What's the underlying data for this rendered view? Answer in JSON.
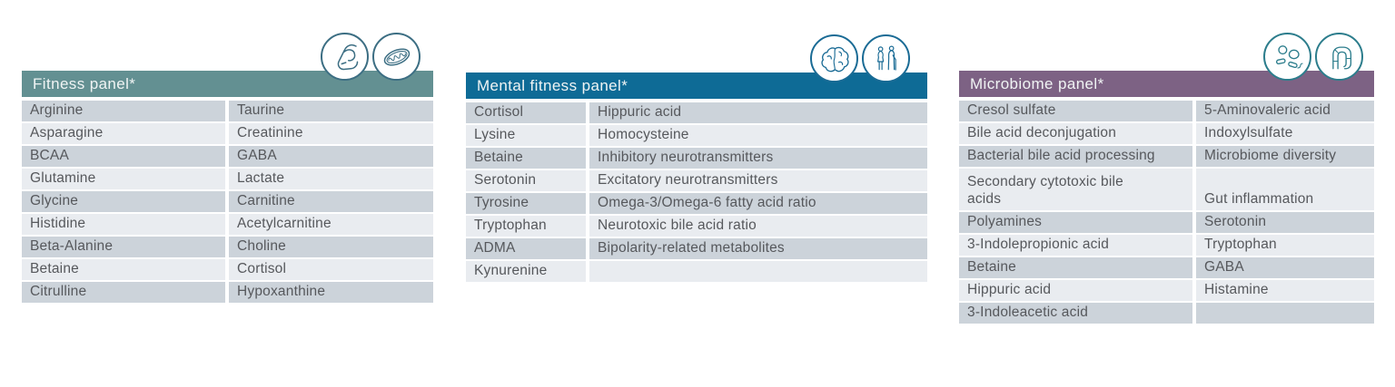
{
  "colors": {
    "row_dark": "#ccd3da",
    "row_light": "#e9ecf0",
    "cell_text": "#56585c",
    "header_text": "#f0f4f4"
  },
  "panels": [
    {
      "title": "Fitness panel*",
      "header_color": "#639092",
      "icon_color": "#3c6e83",
      "icons": [
        "bicep-icon",
        "mitochondria-icon"
      ],
      "rows": [
        [
          "Arginine",
          "Taurine"
        ],
        [
          "Asparagine",
          "Creatinine"
        ],
        [
          "BCAA",
          "GABA"
        ],
        [
          "Glutamine",
          "Lactate"
        ],
        [
          "Glycine",
          "Carnitine"
        ],
        [
          "Histidine",
          "Acetylcarnitine"
        ],
        [
          "Beta-Alanine",
          "Choline"
        ],
        [
          "Betaine",
          "Cortisol"
        ],
        [
          "Citrulline",
          "Hypoxanthine"
        ]
      ]
    },
    {
      "title": "Mental fitness panel*",
      "header_color": "#0e6b96",
      "icon_color": "#1a6b95",
      "icons": [
        "brain-icon",
        "elderly-couple-icon"
      ],
      "rows": [
        [
          "Cortisol",
          "Hippuric acid"
        ],
        [
          "Lysine",
          "Homocysteine"
        ],
        [
          "Betaine",
          "Inhibitory neurotransmitters"
        ],
        [
          "Serotonin",
          "Excitatory neurotransmitters"
        ],
        [
          "Tyrosine",
          "Omega-3/Omega-6 fatty acid ratio"
        ],
        [
          "Tryptophan",
          "Neurotoxic bile acid ratio"
        ],
        [
          "ADMA",
          "Bipolarity-related metabolites"
        ],
        [
          "Kynurenine",
          ""
        ]
      ]
    },
    {
      "title": "Microbiome panel*",
      "header_color": "#7d6284",
      "icon_color": "#2c7d8c",
      "icons": [
        "bacteria-icon",
        "intestine-icon"
      ],
      "rows": [
        [
          "Cresol sulfate",
          "5-Aminovaleric acid"
        ],
        [
          "Bile acid deconjugation",
          "Indoxylsulfate"
        ],
        [
          "Bacterial bile acid processing",
          "Microbiome diversity"
        ],
        [
          "Secondary cytotoxic bile\nacids",
          "Gut inflammation"
        ],
        [
          "Polyamines",
          "Serotonin"
        ],
        [
          "3-Indolepropionic acid",
          "Tryptophan"
        ],
        [
          "Betaine",
          "GABA"
        ],
        [
          "Hippuric acid",
          "Histamine"
        ],
        [
          "3-Indoleacetic acid",
          ""
        ]
      ]
    }
  ]
}
